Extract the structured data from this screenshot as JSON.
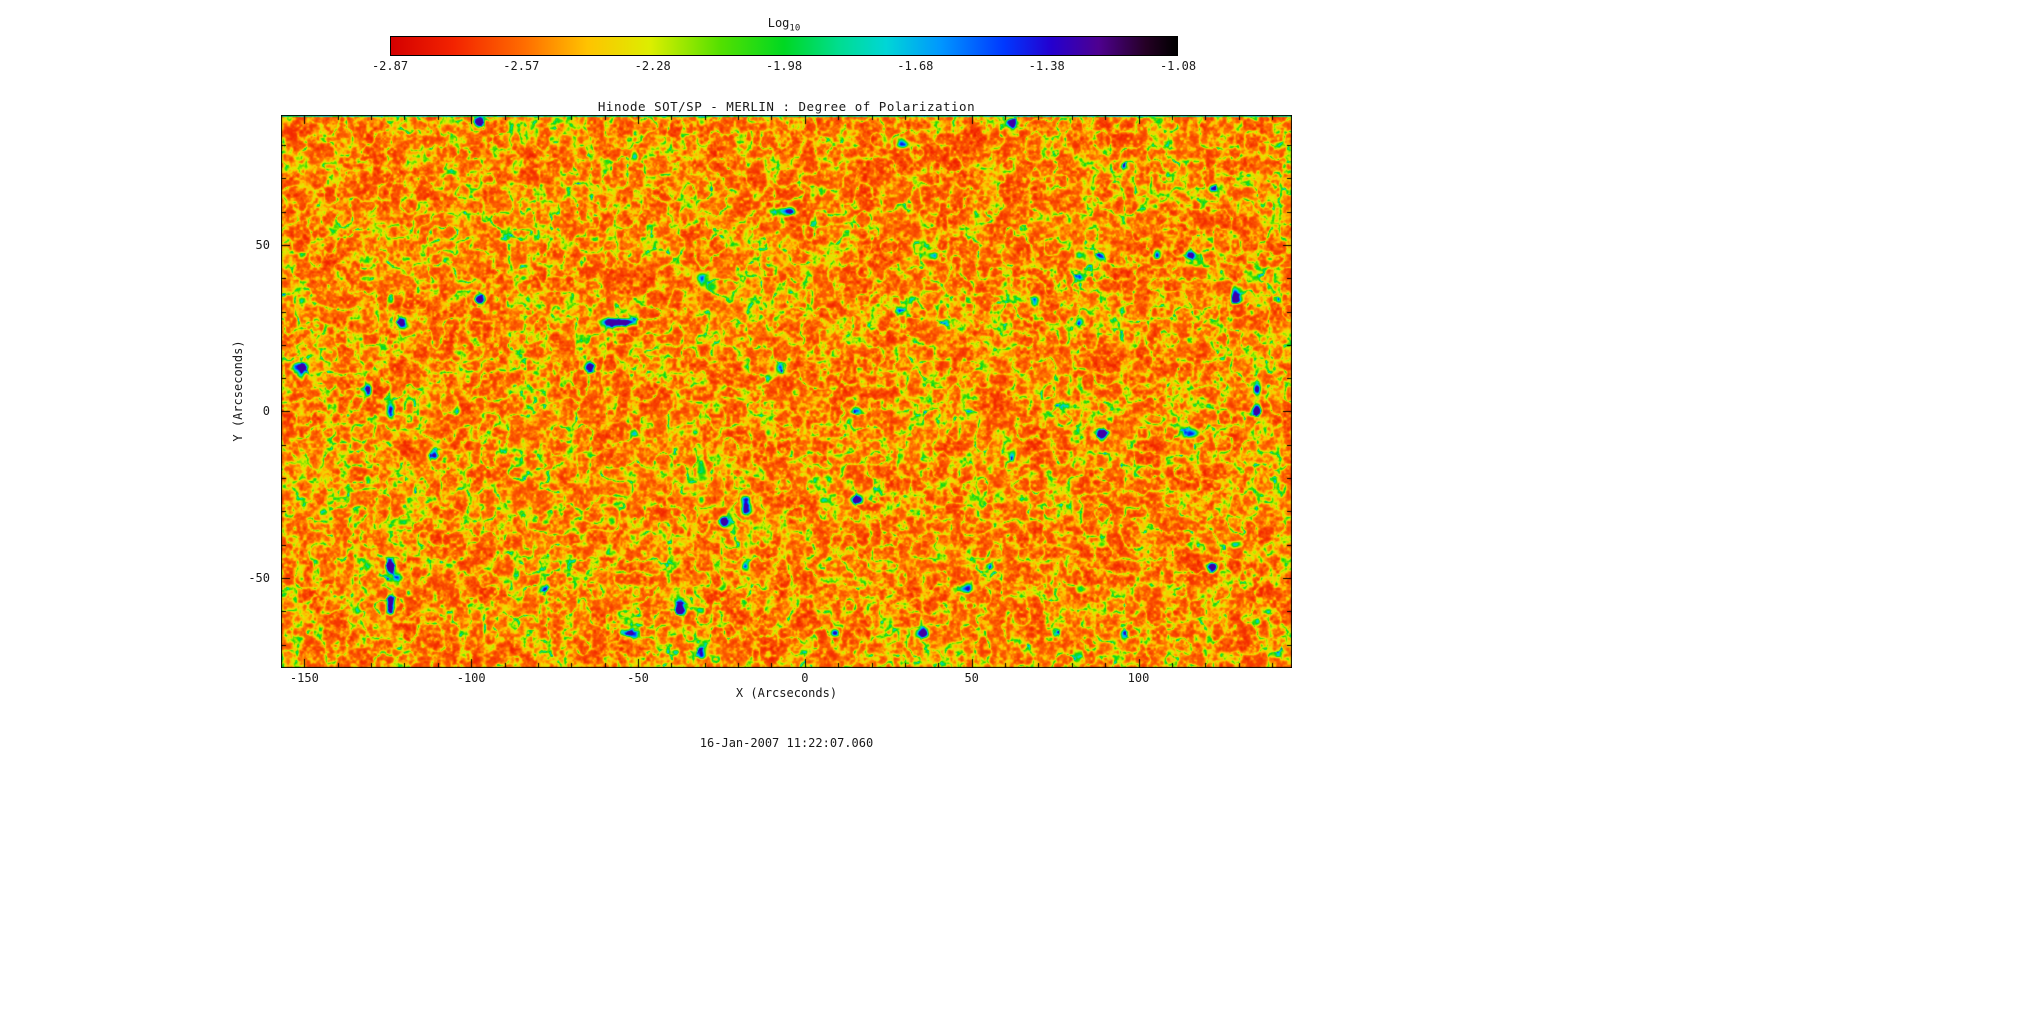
{
  "figure": {
    "background": "#ffffff"
  },
  "colorbar": {
    "title_main": "Log",
    "title_sub": "10",
    "tick_labels": [
      "-2.87",
      "-2.57",
      "-2.28",
      "-1.98",
      "-1.68",
      "-1.38",
      "-1.08"
    ],
    "stops": [
      [
        0.0,
        "#d40000"
      ],
      [
        0.08,
        "#f32300"
      ],
      [
        0.17,
        "#ff6d00"
      ],
      [
        0.25,
        "#ffc300"
      ],
      [
        0.33,
        "#dcee00"
      ],
      [
        0.42,
        "#52e000"
      ],
      [
        0.5,
        "#00d822"
      ],
      [
        0.57,
        "#00dd90"
      ],
      [
        0.63,
        "#00d6d6"
      ],
      [
        0.7,
        "#0096ff"
      ],
      [
        0.78,
        "#0038ff"
      ],
      [
        0.84,
        "#2400cf"
      ],
      [
        0.9,
        "#4e0090"
      ],
      [
        0.96,
        "#250025"
      ],
      [
        1.0,
        "#000000"
      ]
    ]
  },
  "chart_data": {
    "type": "heatmap",
    "title": "Hinode SOT/SP - MERLIN : Degree of Polarization",
    "xlabel": "X (Arcseconds)",
    "ylabel": "Y (Arcseconds)",
    "xlim": [
      -157,
      146
    ],
    "ylim": [
      -77,
      89
    ],
    "xticks": [
      -150,
      -100,
      -50,
      0,
      50,
      100
    ],
    "yticks": [
      50,
      0,
      -50
    ],
    "minor_tick_step": 10,
    "colorbar_title": "Log10",
    "colorbar_ticks": [
      -2.87,
      -2.57,
      -2.28,
      -1.98,
      -1.68,
      -1.38,
      -1.08
    ],
    "value_range_log10": [
      -2.87,
      -1.08
    ],
    "dominant_value_log10": -2.6,
    "field_description": "Quiet-Sun log10 degree-of-polarization map: dominant orange/red background near -2.6, fine green granular speckle network near -2.2, sparse cyan/blue patches of stronger polarization near -1.5, rare dark-blue cores near -1.2",
    "grid": false,
    "legend": "colorbar-top",
    "timestamp": "16-Jan-2007 11:22:07.060"
  },
  "footer": {
    "timestamp": "16-Jan-2007 11:22:07.060"
  }
}
